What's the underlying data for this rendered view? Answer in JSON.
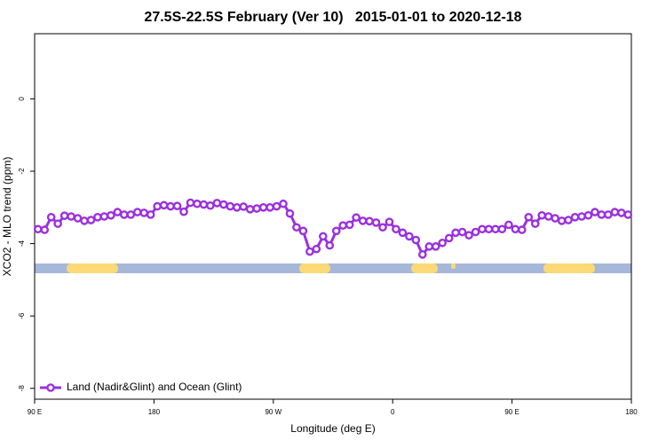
{
  "chart_data": {
    "type": "line",
    "title": "27.5S-22.5S February (Ver 10)   2015-01-01 to 2020-12-18",
    "x_label": "Longitude (deg E)",
    "y_label": "XCO2 - MLO trend (ppm)",
    "xlim": [
      90,
      540
    ],
    "xticks": [
      {
        "value": 90,
        "label": "90 E"
      },
      180,
      {
        "value": 270,
        "label": "90 W"
      },
      {
        "value": 360,
        "label": "0"
      },
      {
        "value": 450,
        "label": "90 E"
      },
      {
        "value": 540,
        "label": "180"
      }
    ],
    "ylim": [
      -8.3,
      1.8
    ],
    "yticks": [
      0,
      -2,
      -4,
      -6,
      -8
    ],
    "legend": "bottom-left",
    "x": [
      92.5,
      97.5,
      102.5,
      107.5,
      112.5,
      117.5,
      122.5,
      127.5,
      132.5,
      137.5,
      142.5,
      147.5,
      152.5,
      157.5,
      162.5,
      167.5,
      172.5,
      177.5,
      182.5,
      187.5,
      192.5,
      197.5,
      202.5,
      207.5,
      212.5,
      217.5,
      222.5,
      227.5,
      232.5,
      237.5,
      242.5,
      247.5,
      252.5,
      257.5,
      262.5,
      267.5,
      272.5,
      277.5,
      282.5,
      287.5,
      292.5,
      297.5,
      302.5,
      307.5,
      312.5,
      317.5,
      322.5,
      327.5,
      332.5,
      337.5,
      342.5,
      347.5,
      352.5,
      357.5,
      362.5,
      367.5,
      372.5,
      377.5,
      382.5,
      387.5,
      392.5,
      397.5,
      402.5,
      407.5,
      412.5,
      417.5,
      422.5,
      427.5,
      432.5,
      437.5,
      442.5,
      447.5,
      452.5,
      457.5,
      462.5,
      467.5,
      472.5,
      477.5,
      482.5,
      487.5,
      492.5,
      497.5,
      502.5,
      507.5,
      512.5,
      517.5,
      522.5,
      527.5,
      532.5,
      537.5
    ],
    "series": [
      {
        "name": "Land (Nadir&Glint) and Ocean (Glint)",
        "color": "#9b30e0",
        "values": [
          -3.6,
          -3.62,
          -3.27,
          -3.45,
          -3.23,
          -3.25,
          -3.3,
          -3.37,
          -3.35,
          -3.27,
          -3.25,
          -3.22,
          -3.13,
          -3.2,
          -3.2,
          -3.13,
          -3.15,
          -3.2,
          -2.97,
          -2.94,
          -2.97,
          -2.96,
          -3.12,
          -2.87,
          -2.9,
          -2.92,
          -2.95,
          -2.88,
          -2.92,
          -2.97,
          -3.0,
          -2.98,
          -3.05,
          -3.03,
          -3.0,
          -3.0,
          -2.97,
          -2.9,
          -3.17,
          -3.55,
          -3.65,
          -4.22,
          -4.15,
          -3.8,
          -4.05,
          -3.65,
          -3.5,
          -3.48,
          -3.28,
          -3.37,
          -3.38,
          -3.42,
          -3.55,
          -3.4,
          -3.6,
          -3.7,
          -3.8,
          -3.9,
          -4.3,
          -4.08,
          -4.08,
          -3.98,
          -3.85,
          -3.7,
          -3.68,
          -3.77,
          -3.68,
          -3.6,
          -3.6,
          -3.6,
          -3.6,
          -3.48,
          -3.6,
          -3.62,
          -3.27,
          -3.45,
          -3.22,
          -3.25,
          -3.3,
          -3.37,
          -3.35,
          -3.27,
          -3.25,
          -3.22,
          -3.13,
          -3.2,
          -3.2,
          -3.13,
          -3.15,
          -3.2
        ]
      }
    ]
  }
}
